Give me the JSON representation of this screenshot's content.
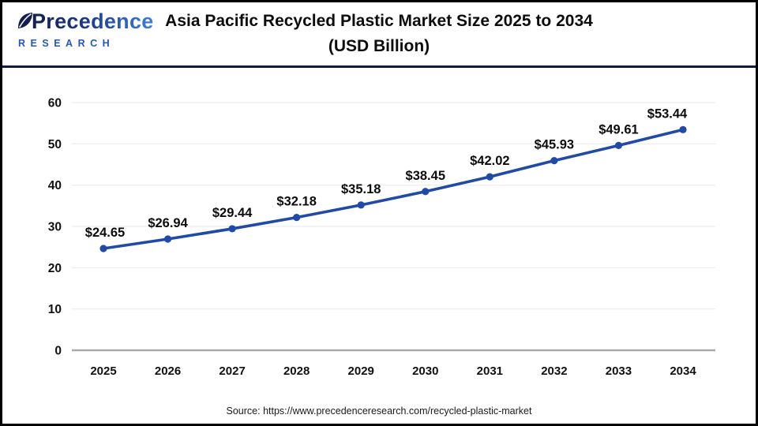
{
  "header": {
    "logo": {
      "name": "Precedence",
      "subname": "RESEARCH"
    },
    "title_line1": "Asia Pacific Recycled Plastic Market Size 2025 to 2034",
    "title_line2": "(USD Billion)"
  },
  "chart_data": {
    "type": "line",
    "title": "Asia Pacific Recycled Plastic Market Size 2025 to 2034 (USD Billion)",
    "categories": [
      "2025",
      "2026",
      "2027",
      "2028",
      "2029",
      "2030",
      "2031",
      "2032",
      "2033",
      "2034"
    ],
    "values": [
      24.65,
      26.94,
      29.44,
      32.18,
      35.18,
      38.45,
      42.02,
      45.93,
      49.61,
      53.44
    ],
    "point_labels": [
      "$24.65",
      "$26.94",
      "$29.44",
      "$32.18",
      "$35.18",
      "$38.45",
      "$42.02",
      "$45.93",
      "$49.61",
      "$53.44"
    ],
    "xlabel": "",
    "ylabel": "",
    "ylim": [
      0,
      60
    ],
    "yticks": [
      0,
      10,
      20,
      30,
      40,
      50,
      60
    ],
    "grid": true,
    "legend": "none",
    "line_color": "#1f4aa8",
    "marker": "circle"
  },
  "footer": {
    "source": "Source: https://www.precedenceresearch.com/recycled-plastic-market"
  },
  "colors": {
    "line": "#1f4aa8",
    "header_rule": "#101b3e",
    "frame_border": "#000000",
    "gridline": "#ececec",
    "zero_axis": "#a9a9a9",
    "axis_text": "#111111",
    "logo_dark": "#131f4f",
    "logo_light": "#3d7fd8",
    "logo_sub": "#2456c0"
  }
}
